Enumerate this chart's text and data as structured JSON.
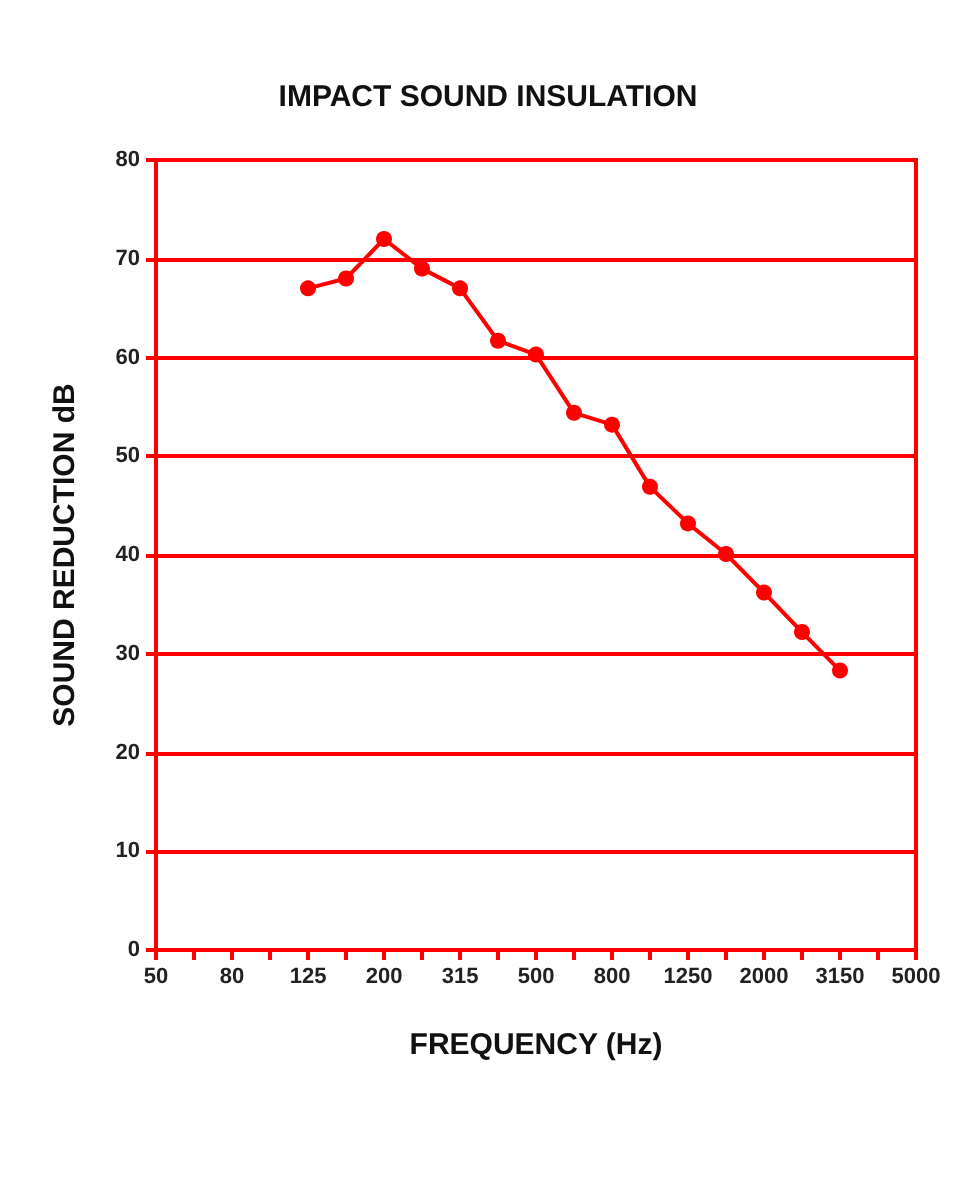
{
  "chart_data": {
    "type": "line",
    "title": "IMPACT SOUND INSULATION",
    "xlabel": "FREQUENCY (Hz)",
    "ylabel": "SOUND REDUCTION dB",
    "categories": [
      "50",
      null,
      "80",
      null,
      "125",
      null,
      "200",
      null,
      "315",
      null,
      "500",
      null,
      "800",
      null,
      "1250",
      null,
      "2000",
      null,
      "3150",
      null,
      "5000"
    ],
    "series": [
      {
        "color": "#ff0000",
        "values": [
          null,
          null,
          null,
          null,
          67,
          68,
          72,
          69,
          67,
          61.7,
          60.3,
          54.4,
          53.2,
          46.9,
          43.2,
          40.1,
          36.2,
          32.2,
          28.3,
          null,
          null
        ]
      }
    ],
    "ylim": [
      0,
      80
    ],
    "yticks": [
      0,
      10,
      20,
      30,
      40,
      50,
      60,
      70,
      80
    ],
    "grid": "y",
    "marker": "circle",
    "line_style": "solid"
  }
}
